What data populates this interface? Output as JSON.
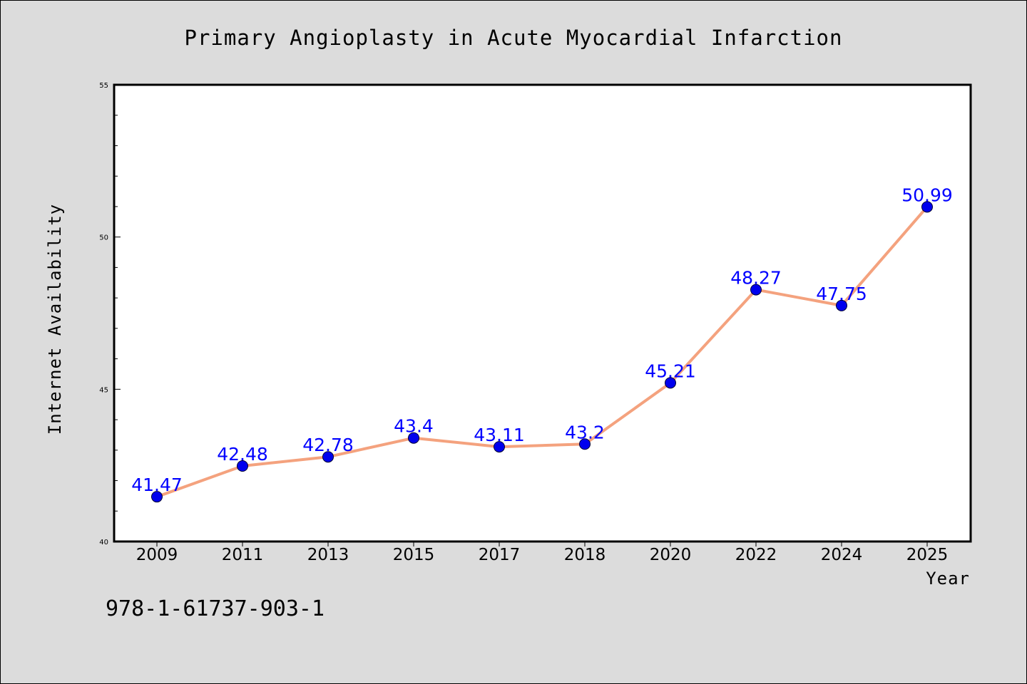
{
  "chart_data": {
    "type": "line",
    "title": "Primary Angioplasty in Acute Myocardial Infarction",
    "xlabel": "Year",
    "ylabel": "Internet Availability",
    "categories": [
      "2009",
      "2011",
      "2013",
      "2015",
      "2017",
      "2018",
      "2020",
      "2022",
      "2024",
      "2025"
    ],
    "series": [
      {
        "values": [
          41.47,
          42.48,
          42.78,
          43.4,
          43.11,
          43.2,
          45.21,
          48.27,
          47.75,
          50.99
        ],
        "data_labels": [
          "41.47",
          "42.48",
          "42.78",
          "43.4",
          "43.11",
          "43.2",
          "45.21",
          "48.27",
          "47.75",
          "50.99"
        ]
      }
    ],
    "ylim": [
      40,
      55
    ],
    "yticks": [
      "40",
      "45",
      "50",
      "55"
    ],
    "y_minor_step": 1,
    "grid": false,
    "legend": "none",
    "colors": {
      "line": "#f4a27e",
      "marker": "#0000ee",
      "label": "#0000ff",
      "background": "#dcdcdc",
      "plot_background": "#ffffff"
    }
  },
  "footer": {
    "isbn": "978-1-61737-903-1"
  }
}
